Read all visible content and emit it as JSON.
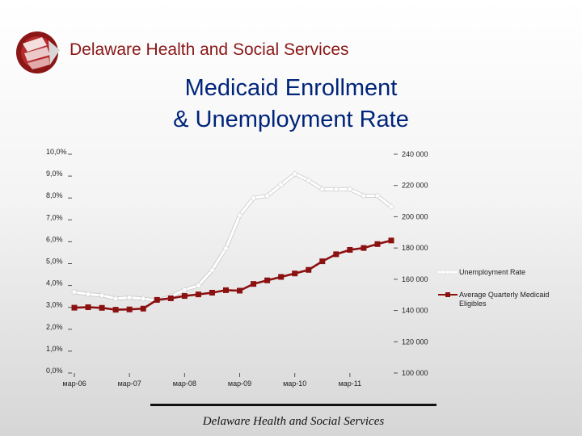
{
  "header": {
    "org_name": "Delaware Health and Social Services"
  },
  "title_lines": [
    "Medicaid Enrollment",
    "& Unemployment Rate"
  ],
  "footer": {
    "text": "Delaware Health and Social Services"
  },
  "colors": {
    "unemployment": "#ffffff",
    "medicaid": "#8b1010",
    "title": "#00247a",
    "org": "#8a1616"
  },
  "chart_data": {
    "type": "line",
    "title": "Medicaid Enrollment & Unemployment Rate",
    "x_tick_labels": [
      "мар-06",
      "мар-07",
      "мар-08",
      "мар-09",
      "мар-10",
      "мар-11"
    ],
    "x_tick_index": [
      0,
      4,
      8,
      12,
      16,
      20
    ],
    "left_axis": {
      "min": 0,
      "max": 10,
      "step": 1,
      "tick_labels": [
        "0,0%",
        "1,0%",
        "2,0%",
        "3,0%",
        "4,0%",
        "5,0%",
        "6,0%",
        "7,0%",
        "8,0%",
        "9,0%",
        "10,0%"
      ]
    },
    "right_axis": {
      "min": 100000,
      "max": 240000,
      "step": 20000,
      "tick_labels": [
        "100 000",
        "120 000",
        "140 000",
        "160 000",
        "180 000",
        "200 000",
        "220 000",
        "240 000"
      ]
    },
    "series": [
      {
        "name": "Unemployment Rate",
        "axis": "left",
        "values": [
          3.7,
          3.6,
          3.55,
          3.4,
          3.45,
          3.4,
          3.3,
          3.5,
          3.8,
          4.0,
          4.7,
          5.7,
          7.2,
          8.0,
          8.1,
          8.6,
          9.1,
          8.8,
          8.4,
          8.4,
          8.4,
          8.1,
          8.1,
          7.6
        ]
      },
      {
        "name": "Average Quarterly Medicaid Eligibles",
        "axis": "right",
        "values": [
          141800,
          142100,
          141700,
          140500,
          140700,
          141200,
          146800,
          147800,
          149300,
          150300,
          151400,
          153000,
          152700,
          157000,
          159300,
          161500,
          163700,
          166000,
          171500,
          176000,
          178800,
          180000,
          182500,
          184800
        ]
      }
    ],
    "legend": {
      "placement": "right",
      "entries": [
        "Unemployment Rate",
        "Average Quarterly Medicaid Eligibles"
      ]
    }
  }
}
